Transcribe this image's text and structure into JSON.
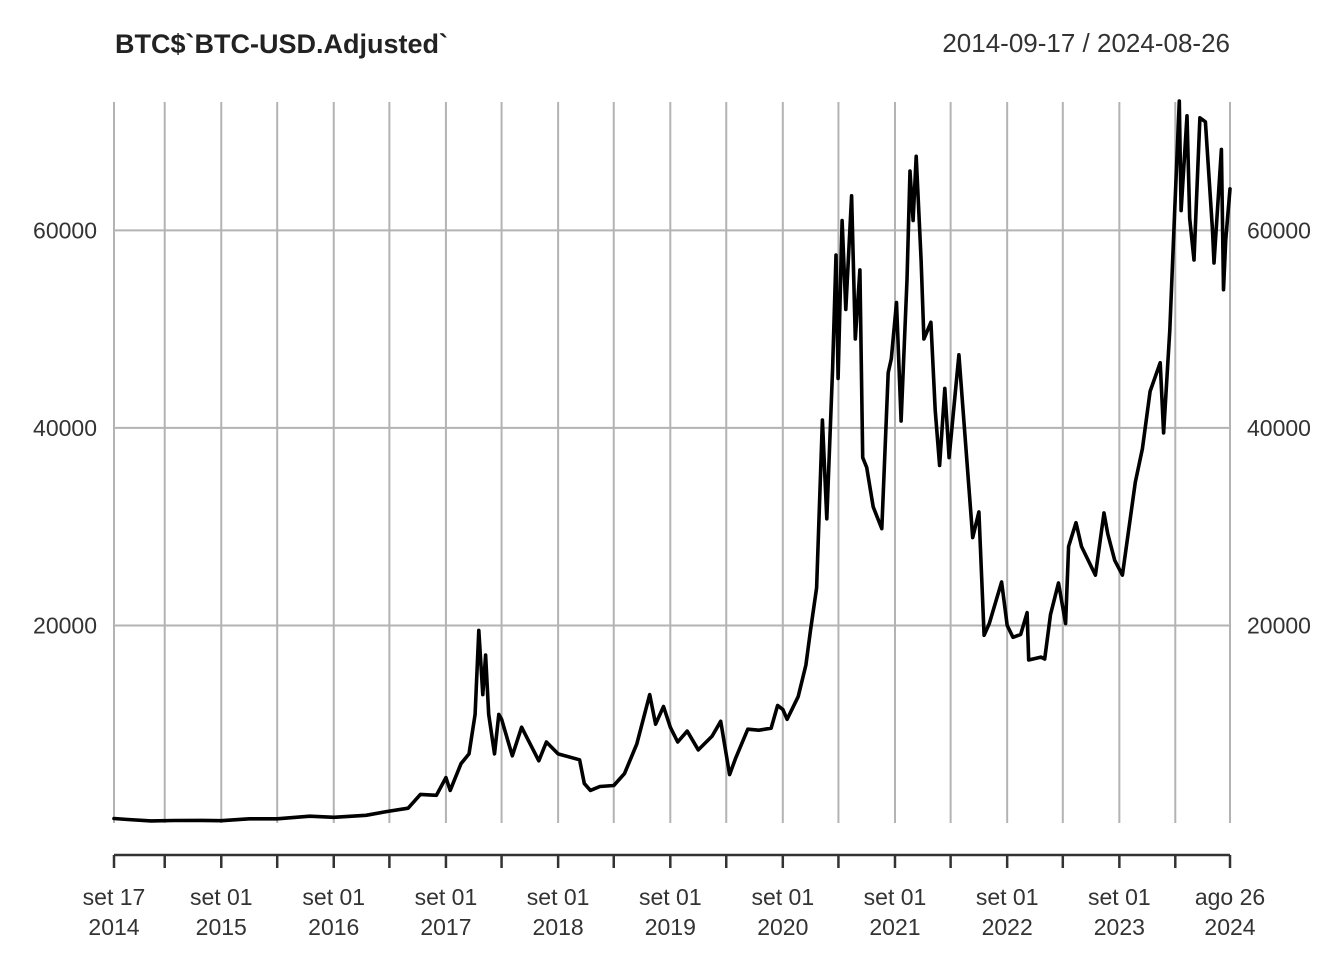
{
  "chart_data": {
    "type": "line",
    "title": "BTC$`BTC-USD.Adjusted`",
    "date_range_label": "2014-09-17 / 2024-08-26",
    "x_range": [
      "2014-09-17",
      "2024-08-26"
    ],
    "ylim": [
      0,
      73000
    ],
    "y_ticks": [
      20000,
      40000,
      60000
    ],
    "y_tick_labels": [
      "20000",
      "40000",
      "60000"
    ],
    "grid": true,
    "x_gridlines": [
      "2014-09-17",
      "2015-03-01",
      "2015-09-01",
      "2016-03-01",
      "2016-09-01",
      "2017-03-01",
      "2017-09-01",
      "2018-03-01",
      "2018-09-01",
      "2019-03-01",
      "2019-09-01",
      "2020-03-01",
      "2020-09-01",
      "2021-03-01",
      "2021-09-01",
      "2022-03-01",
      "2022-09-01",
      "2023-03-01",
      "2023-09-01",
      "2024-03-01",
      "2024-08-26"
    ],
    "x_labeled_ticks": [
      {
        "date": "2014-09-17",
        "line1": "set 17",
        "line2": "2014"
      },
      {
        "date": "2015-09-01",
        "line1": "set 01",
        "line2": "2015"
      },
      {
        "date": "2016-09-01",
        "line1": "set 01",
        "line2": "2016"
      },
      {
        "date": "2017-09-01",
        "line1": "set 01",
        "line2": "2017"
      },
      {
        "date": "2018-09-01",
        "line1": "set 01",
        "line2": "2018"
      },
      {
        "date": "2019-09-01",
        "line1": "set 01",
        "line2": "2019"
      },
      {
        "date": "2020-09-01",
        "line1": "set 01",
        "line2": "2020"
      },
      {
        "date": "2021-09-01",
        "line1": "set 01",
        "line2": "2021"
      },
      {
        "date": "2022-09-01",
        "line1": "set 01",
        "line2": "2022"
      },
      {
        "date": "2023-09-01",
        "line1": "set 01",
        "line2": "2023"
      },
      {
        "date": "2024-08-26",
        "line1": "ago 26",
        "line2": "2024"
      }
    ],
    "series": [
      {
        "values": [
          [
            "2014-09-17",
            457
          ],
          [
            "2014-11-01",
            350
          ],
          [
            "2015-01-15",
            210
          ],
          [
            "2015-04-01",
            250
          ],
          [
            "2015-07-01",
            260
          ],
          [
            "2015-09-01",
            230
          ],
          [
            "2015-12-01",
            430
          ],
          [
            "2016-03-01",
            430
          ],
          [
            "2016-06-15",
            690
          ],
          [
            "2016-09-01",
            580
          ],
          [
            "2016-12-15",
            780
          ],
          [
            "2017-03-01",
            1200
          ],
          [
            "2017-05-01",
            1500
          ],
          [
            "2017-06-10",
            2900
          ],
          [
            "2017-08-01",
            2800
          ],
          [
            "2017-09-01",
            4600
          ],
          [
            "2017-09-15",
            3300
          ],
          [
            "2017-10-20",
            6000
          ],
          [
            "2017-11-15",
            7000
          ],
          [
            "2017-12-05",
            11000
          ],
          [
            "2017-12-17",
            19500
          ],
          [
            "2017-12-30",
            13000
          ],
          [
            "2018-01-08",
            17000
          ],
          [
            "2018-01-18",
            11000
          ],
          [
            "2018-02-06",
            7000
          ],
          [
            "2018-02-20",
            11000
          ],
          [
            "2018-03-01",
            10500
          ],
          [
            "2018-04-05",
            6800
          ],
          [
            "2018-05-05",
            9700
          ],
          [
            "2018-06-30",
            6300
          ],
          [
            "2018-07-25",
            8200
          ],
          [
            "2018-09-01",
            7000
          ],
          [
            "2018-11-10",
            6400
          ],
          [
            "2018-11-25",
            4000
          ],
          [
            "2018-12-15",
            3300
          ],
          [
            "2019-01-15",
            3700
          ],
          [
            "2019-03-01",
            3800
          ],
          [
            "2019-04-05",
            5000
          ],
          [
            "2019-05-15",
            8000
          ],
          [
            "2019-06-26",
            13000
          ],
          [
            "2019-07-15",
            10000
          ],
          [
            "2019-08-10",
            11800
          ],
          [
            "2019-09-01",
            9700
          ],
          [
            "2019-09-25",
            8200
          ],
          [
            "2019-10-26",
            9300
          ],
          [
            "2019-12-01",
            7400
          ],
          [
            "2020-01-15",
            8800
          ],
          [
            "2020-02-12",
            10300
          ],
          [
            "2020-03-12",
            4900
          ],
          [
            "2020-04-01",
            6600
          ],
          [
            "2020-05-10",
            9500
          ],
          [
            "2020-06-15",
            9400
          ],
          [
            "2020-07-25",
            9600
          ],
          [
            "2020-08-15",
            11900
          ],
          [
            "2020-09-01",
            11500
          ],
          [
            "2020-09-15",
            10500
          ],
          [
            "2020-10-21",
            12800
          ],
          [
            "2020-11-15",
            16000
          ],
          [
            "2020-11-30",
            19500
          ],
          [
            "2020-12-20",
            23800
          ],
          [
            "2021-01-08",
            40800
          ],
          [
            "2021-01-22",
            30800
          ],
          [
            "2021-02-10",
            46000
          ],
          [
            "2021-02-21",
            57500
          ],
          [
            "2021-02-28",
            45000
          ],
          [
            "2021-03-13",
            61000
          ],
          [
            "2021-03-25",
            52000
          ],
          [
            "2021-04-13",
            63500
          ],
          [
            "2021-04-25",
            49000
          ],
          [
            "2021-05-10",
            56000
          ],
          [
            "2021-05-19",
            37000
          ],
          [
            "2021-06-01",
            36000
          ],
          [
            "2021-06-22",
            32000
          ],
          [
            "2021-07-20",
            29800
          ],
          [
            "2021-08-10",
            45600
          ],
          [
            "2021-08-20",
            47000
          ],
          [
            "2021-09-06",
            52700
          ],
          [
            "2021-09-21",
            40700
          ],
          [
            "2021-10-10",
            55000
          ],
          [
            "2021-10-20",
            66000
          ],
          [
            "2021-10-30",
            61000
          ],
          [
            "2021-11-09",
            67500
          ],
          [
            "2021-11-25",
            57000
          ],
          [
            "2021-12-04",
            49000
          ],
          [
            "2021-12-27",
            50700
          ],
          [
            "2022-01-10",
            41800
          ],
          [
            "2022-01-24",
            36200
          ],
          [
            "2022-02-10",
            44000
          ],
          [
            "2022-02-24",
            37000
          ],
          [
            "2022-03-28",
            47400
          ],
          [
            "2022-04-15",
            40000
          ],
          [
            "2022-05-12",
            28900
          ],
          [
            "2022-06-01",
            31500
          ],
          [
            "2022-06-18",
            19000
          ],
          [
            "2022-07-05",
            20200
          ],
          [
            "2022-08-14",
            24400
          ],
          [
            "2022-09-01",
            20000
          ],
          [
            "2022-09-20",
            18800
          ],
          [
            "2022-10-15",
            19100
          ],
          [
            "2022-11-05",
            21300
          ],
          [
            "2022-11-10",
            16500
          ],
          [
            "2022-12-20",
            16800
          ],
          [
            "2023-01-01",
            16600
          ],
          [
            "2023-01-20",
            21100
          ],
          [
            "2023-02-15",
            24300
          ],
          [
            "2023-03-10",
            20200
          ],
          [
            "2023-03-20",
            28000
          ],
          [
            "2023-04-13",
            30400
          ],
          [
            "2023-05-01",
            28000
          ],
          [
            "2023-06-15",
            25100
          ],
          [
            "2023-07-13",
            31400
          ],
          [
            "2023-07-25",
            29300
          ],
          [
            "2023-08-17",
            26600
          ],
          [
            "2023-09-11",
            25100
          ],
          [
            "2023-10-23",
            34500
          ],
          [
            "2023-11-15",
            37900
          ],
          [
            "2023-12-10",
            43700
          ],
          [
            "2024-01-12",
            46600
          ],
          [
            "2024-01-23",
            39500
          ],
          [
            "2024-02-12",
            49900
          ],
          [
            "2024-02-28",
            62000
          ],
          [
            "2024-03-14",
            73100
          ],
          [
            "2024-03-20",
            62000
          ],
          [
            "2024-04-08",
            71600
          ],
          [
            "2024-04-17",
            61200
          ],
          [
            "2024-05-01",
            57000
          ],
          [
            "2024-05-20",
            71400
          ],
          [
            "2024-06-07",
            71000
          ],
          [
            "2024-06-30",
            60000
          ],
          [
            "2024-07-05",
            56700
          ],
          [
            "2024-07-29",
            68200
          ],
          [
            "2024-08-05",
            54000
          ],
          [
            "2024-08-12",
            59000
          ],
          [
            "2024-08-26",
            64200
          ]
        ]
      }
    ]
  }
}
